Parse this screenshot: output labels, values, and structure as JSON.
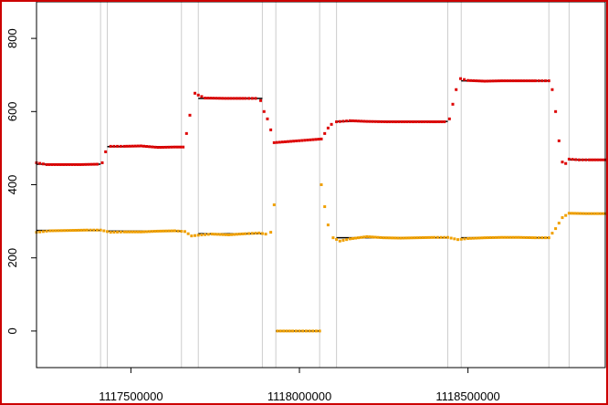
{
  "chart_data": {
    "type": "scatter",
    "title": "",
    "xlabel": "",
    "ylabel": "",
    "xlim": [
      1117220000,
      1118910000
    ],
    "ylim": [
      -100,
      900
    ],
    "x_ticks": [
      1117500000,
      1118000000,
      1118500000
    ],
    "x_tick_labels": [
      "1117500000",
      "1118000000",
      "1118500000"
    ],
    "y_ticks": [
      0,
      200,
      400,
      600,
      800
    ],
    "y_tick_labels": [
      "0",
      "200",
      "400",
      "600",
      "800"
    ],
    "grid": "vertical lines only",
    "vertical_markers": [
      1117410000,
      1117430000,
      1117650000,
      1117700000,
      1117890000,
      1117930000,
      1118060000,
      1118110000,
      1118440000,
      1118480000,
      1118740000,
      1118800000
    ],
    "series": [
      {
        "color": "#dd0000",
        "points": [
          [
            1117220000,
            460
          ],
          [
            1117250000,
            455
          ],
          [
            1117300000,
            455
          ],
          [
            1117350000,
            455
          ],
          [
            1117400000,
            456
          ],
          [
            1117415000,
            460
          ],
          [
            1117425000,
            490
          ],
          [
            1117440000,
            505
          ],
          [
            1117480000,
            505
          ],
          [
            1117530000,
            506
          ],
          [
            1117580000,
            502
          ],
          [
            1117630000,
            503
          ],
          [
            1117655000,
            503
          ],
          [
            1117665000,
            540
          ],
          [
            1117675000,
            590
          ],
          [
            1117690000,
            650
          ],
          [
            1117700000,
            645
          ],
          [
            1117720000,
            637
          ],
          [
            1117780000,
            636
          ],
          [
            1117840000,
            636
          ],
          [
            1117870000,
            636
          ],
          [
            1117885000,
            630
          ],
          [
            1117895000,
            600
          ],
          [
            1117905000,
            580
          ],
          [
            1117915000,
            550
          ],
          [
            1117925000,
            515
          ],
          [
            1118065000,
            525
          ],
          [
            1118075000,
            540
          ],
          [
            1118085000,
            555
          ],
          [
            1118095000,
            565
          ],
          [
            1118110000,
            572
          ],
          [
            1118150000,
            575
          ],
          [
            1118200000,
            573
          ],
          [
            1118260000,
            572
          ],
          [
            1118320000,
            572
          ],
          [
            1118380000,
            572
          ],
          [
            1118430000,
            572
          ],
          [
            1118445000,
            580
          ],
          [
            1118455000,
            620
          ],
          [
            1118465000,
            660
          ],
          [
            1118478000,
            690
          ],
          [
            1118500000,
            685
          ],
          [
            1118550000,
            683
          ],
          [
            1118600000,
            684
          ],
          [
            1118650000,
            684
          ],
          [
            1118700000,
            684
          ],
          [
            1118740000,
            684
          ],
          [
            1118750000,
            660
          ],
          [
            1118760000,
            600
          ],
          [
            1118770000,
            520
          ],
          [
            1118780000,
            462
          ],
          [
            1118790000,
            458
          ],
          [
            1118800000,
            470
          ],
          [
            1118830000,
            468
          ],
          [
            1118860000,
            468
          ],
          [
            1118910000,
            468
          ]
        ]
      },
      {
        "color": "#f0a000",
        "points": [
          [
            1117220000,
            270
          ],
          [
            1117260000,
            274
          ],
          [
            1117320000,
            275
          ],
          [
            1117370000,
            276
          ],
          [
            1117410000,
            276
          ],
          [
            1117440000,
            270
          ],
          [
            1117480000,
            271
          ],
          [
            1117530000,
            271
          ],
          [
            1117580000,
            273
          ],
          [
            1117630000,
            274
          ],
          [
            1117660000,
            272
          ],
          [
            1117680000,
            260
          ],
          [
            1117700000,
            262
          ],
          [
            1117740000,
            265
          ],
          [
            1117790000,
            263
          ],
          [
            1117840000,
            266
          ],
          [
            1117880000,
            268
          ],
          [
            1117900000,
            265
          ],
          [
            1117915000,
            270
          ],
          [
            1117925000,
            345
          ],
          [
            1117935000,
            0
          ],
          [
            1117980000,
            0
          ],
          [
            1118020000,
            0
          ],
          [
            1118060000,
            0
          ],
          [
            1118065000,
            400
          ],
          [
            1118075000,
            340
          ],
          [
            1118085000,
            290
          ],
          [
            1118100000,
            255
          ],
          [
            1118120000,
            246
          ],
          [
            1118150000,
            252
          ],
          [
            1118200000,
            258
          ],
          [
            1118250000,
            255
          ],
          [
            1118300000,
            254
          ],
          [
            1118350000,
            255
          ],
          [
            1118400000,
            256
          ],
          [
            1118440000,
            256
          ],
          [
            1118470000,
            250
          ],
          [
            1118500000,
            253
          ],
          [
            1118550000,
            255
          ],
          [
            1118600000,
            256
          ],
          [
            1118650000,
            256
          ],
          [
            1118700000,
            255
          ],
          [
            1118740000,
            255
          ],
          [
            1118760000,
            280
          ],
          [
            1118780000,
            310
          ],
          [
            1118800000,
            322
          ],
          [
            1118850000,
            321
          ],
          [
            1118910000,
            321
          ]
        ]
      }
    ],
    "mean_lines": {
      "color": "#000000",
      "segments": [
        [
          1117220000,
          1117410000,
          275
        ],
        [
          1117430000,
          1117650000,
          273
        ],
        [
          1117700000,
          1117890000,
          266
        ],
        [
          1117930000,
          1118060000,
          0
        ],
        [
          1118110000,
          1118440000,
          255
        ],
        [
          1118480000,
          1118740000,
          255
        ],
        [
          1118800000,
          1118910000,
          321
        ],
        [
          1117220000,
          1117410000,
          456
        ],
        [
          1117430000,
          1117650000,
          504
        ],
        [
          1117700000,
          1117890000,
          636
        ],
        [
          1118110000,
          1118440000,
          573
        ],
        [
          1118480000,
          1118740000,
          684
        ],
        [
          1118800000,
          1118910000,
          468
        ]
      ]
    },
    "colors": {
      "frame": "#cc0000",
      "gridline": "#cccccc"
    }
  }
}
